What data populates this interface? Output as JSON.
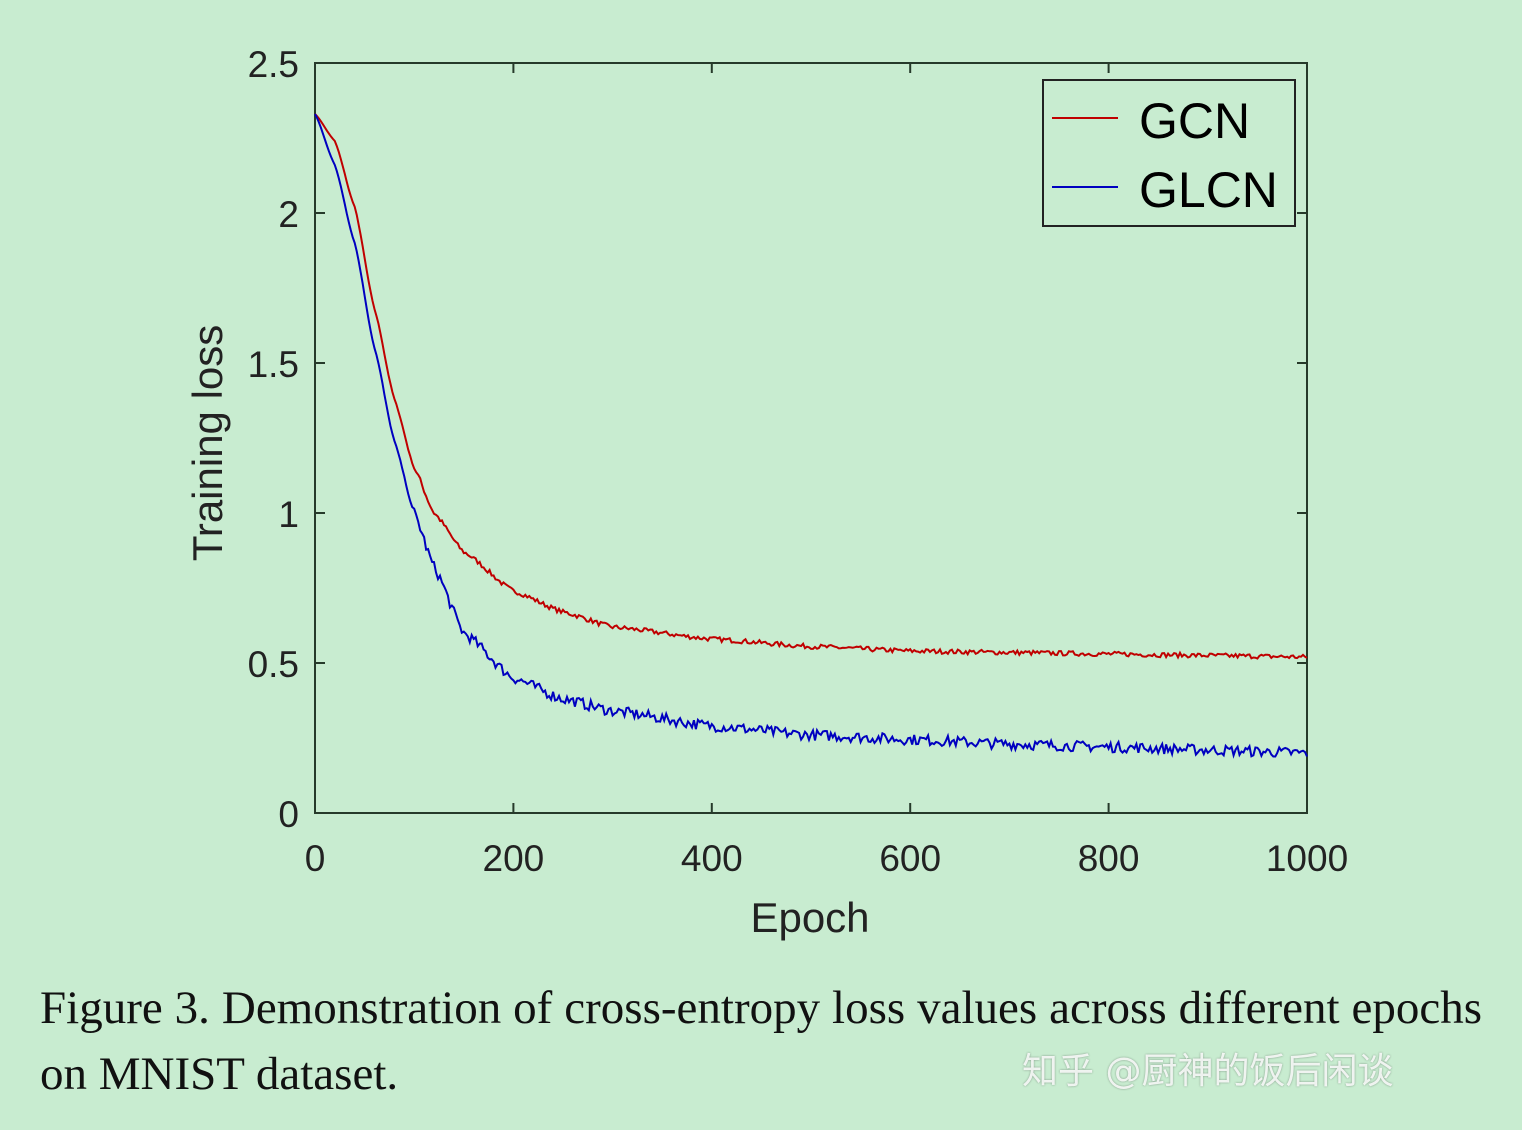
{
  "chart_data": {
    "type": "line",
    "xlabel": "Epoch",
    "ylabel": "Training loss",
    "xlim": [
      0,
      1000
    ],
    "ylim": [
      0,
      2.5
    ],
    "xticks": [
      "0",
      "200",
      "400",
      "600",
      "800",
      "1000"
    ],
    "yticks": [
      "0",
      "0.5",
      "1",
      "1.5",
      "2",
      "2.5"
    ],
    "grid": false,
    "legend_position": "top-right",
    "series": [
      {
        "name": "GCN",
        "color": "#c00000",
        "x": [
          0,
          20,
          40,
          60,
          80,
          100,
          120,
          150,
          200,
          250,
          300,
          400,
          500,
          600,
          700,
          800,
          900,
          1000
        ],
        "y": [
          2.33,
          2.24,
          2.02,
          1.68,
          1.38,
          1.15,
          1.0,
          0.87,
          0.74,
          0.67,
          0.62,
          0.58,
          0.555,
          0.54,
          0.535,
          0.53,
          0.525,
          0.52
        ]
      },
      {
        "name": "GLCN",
        "color": "#0000c0",
        "x": [
          0,
          20,
          40,
          60,
          80,
          100,
          120,
          150,
          200,
          250,
          300,
          400,
          500,
          600,
          700,
          800,
          900,
          1000
        ],
        "y": [
          2.33,
          2.16,
          1.9,
          1.55,
          1.24,
          1.0,
          0.82,
          0.6,
          0.45,
          0.38,
          0.34,
          0.29,
          0.26,
          0.245,
          0.23,
          0.22,
          0.21,
          0.2
        ]
      }
    ]
  },
  "caption": "Figure 3. Demonstration of cross-entropy loss values across different epochs on MNIST dataset.",
  "watermark": "知乎 @厨神的饭后闲谈"
}
